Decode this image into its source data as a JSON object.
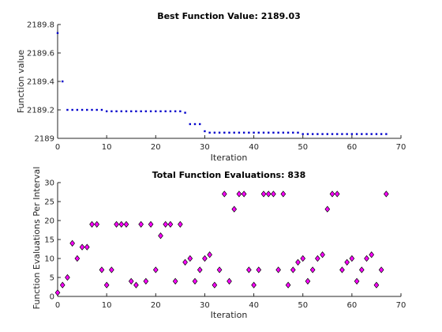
{
  "colors": {
    "background": "#ffffff",
    "axes": "#262626",
    "top_marker": "#0000cc",
    "bottom_marker_fill": "#ff00ff",
    "bottom_marker_edge": "#000000"
  },
  "chart_data": [
    {
      "type": "scatter",
      "title": "Best Function Value: 2189.03",
      "xlabel": "Iteration",
      "ylabel": "Function value",
      "xlim": [
        0,
        70
      ],
      "ylim": [
        2189.0,
        2189.8
      ],
      "xticks": [
        0,
        10,
        20,
        30,
        40,
        50,
        60,
        70
      ],
      "yticks": [
        2189.0,
        2189.2,
        2189.4,
        2189.6,
        2189.8
      ],
      "ytick_labels": [
        "2189",
        "2189.2",
        "2189.4",
        "2189.6",
        "2189.8"
      ],
      "grid": false,
      "marker": "dot",
      "x": [
        0,
        1,
        2,
        3,
        4,
        5,
        6,
        7,
        8,
        9,
        10,
        11,
        12,
        13,
        14,
        15,
        16,
        17,
        18,
        19,
        20,
        21,
        22,
        23,
        24,
        25,
        26,
        27,
        28,
        29,
        30,
        31,
        32,
        33,
        34,
        35,
        36,
        37,
        38,
        39,
        40,
        41,
        42,
        43,
        44,
        45,
        46,
        47,
        48,
        49,
        50,
        51,
        52,
        53,
        54,
        55,
        56,
        57,
        58,
        59,
        60,
        61,
        62,
        63,
        64,
        65,
        66,
        67
      ],
      "y": [
        2189.74,
        2189.4,
        2189.2,
        2189.2,
        2189.2,
        2189.2,
        2189.2,
        2189.2,
        2189.2,
        2189.2,
        2189.19,
        2189.19,
        2189.19,
        2189.19,
        2189.19,
        2189.19,
        2189.19,
        2189.19,
        2189.19,
        2189.19,
        2189.19,
        2189.19,
        2189.19,
        2189.19,
        2189.19,
        2189.19,
        2189.18,
        2189.1,
        2189.1,
        2189.1,
        2189.05,
        2189.04,
        2189.04,
        2189.04,
        2189.04,
        2189.04,
        2189.04,
        2189.04,
        2189.04,
        2189.04,
        2189.04,
        2189.04,
        2189.04,
        2189.04,
        2189.04,
        2189.04,
        2189.04,
        2189.04,
        2189.04,
        2189.04,
        2189.03,
        2189.03,
        2189.03,
        2189.03,
        2189.03,
        2189.03,
        2189.03,
        2189.03,
        2189.03,
        2189.03,
        2189.03,
        2189.03,
        2189.03,
        2189.03,
        2189.03,
        2189.03,
        2189.03,
        2189.03
      ]
    },
    {
      "type": "scatter",
      "title": "Total Function Evaluations: 838",
      "xlabel": "Iteration",
      "ylabel": "Function Evaluations Per Interval",
      "xlim": [
        0,
        70
      ],
      "ylim": [
        0,
        30
      ],
      "xticks": [
        0,
        10,
        20,
        30,
        40,
        50,
        60,
        70
      ],
      "yticks": [
        0,
        5,
        10,
        15,
        20,
        25,
        30
      ],
      "ytick_labels": [
        "0",
        "5",
        "10",
        "15",
        "20",
        "25",
        "30"
      ],
      "grid": false,
      "marker": "diamond",
      "x": [
        0,
        1,
        2,
        3,
        4,
        5,
        6,
        7,
        8,
        9,
        10,
        11,
        12,
        13,
        14,
        15,
        16,
        17,
        18,
        19,
        20,
        21,
        22,
        23,
        24,
        25,
        26,
        27,
        28,
        29,
        30,
        31,
        32,
        33,
        34,
        35,
        36,
        37,
        38,
        39,
        40,
        41,
        42,
        43,
        44,
        45,
        46,
        47,
        48,
        49,
        50,
        51,
        52,
        53,
        54,
        55,
        56,
        57,
        58,
        59,
        60,
        61,
        62,
        63,
        64,
        65,
        66,
        67
      ],
      "y": [
        1,
        3,
        5,
        14,
        10,
        13,
        13,
        19,
        19,
        7,
        3,
        7,
        19,
        19,
        19,
        4,
        3,
        19,
        4,
        19,
        7,
        16,
        19,
        19,
        4,
        19,
        9,
        10,
        4,
        7,
        10,
        11,
        3,
        7,
        27,
        4,
        23,
        27,
        27,
        7,
        3,
        7,
        27,
        27,
        27,
        7,
        27,
        3,
        7,
        9,
        10,
        4,
        7,
        10,
        11,
        23,
        27,
        27,
        7,
        9,
        10,
        4,
        7,
        10,
        11,
        3,
        7,
        27
      ]
    }
  ]
}
